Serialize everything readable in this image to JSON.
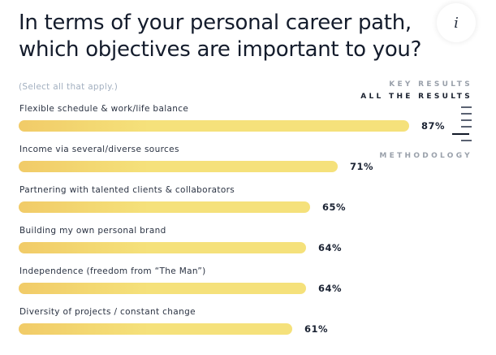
{
  "header": {
    "title": "In terms of your personal career path, which objectives are important to you?",
    "info_button_label": "i",
    "subtitle": "(Select all that apply.)"
  },
  "nav": {
    "key_results": "KEY RESULTS",
    "all_results": "ALL THE RESULTS",
    "methodology": "METHODOLOGY",
    "ticks": 6,
    "active_tick_index": 4
  },
  "colors": {
    "bar": "#f5e17b",
    "bar_start": "#f1cb68",
    "title": "#141c2c",
    "subtitle": "#a3b0c0",
    "nav_inactive": "#9aa1ab",
    "nav_active": "#1c2331"
  },
  "rows": [
    {
      "label": "Flexible schedule & work/life balance",
      "value": 87,
      "pct": "87%"
    },
    {
      "label": "Income via several/diverse sources",
      "value": 71,
      "pct": "71%"
    },
    {
      "label": "Partnering with talented clients & collaborators",
      "value": 65,
      "pct": "65%"
    },
    {
      "label": "Building my own personal brand",
      "value": 64,
      "pct": "64%"
    },
    {
      "label": "Independence (freedom from “The Man”)",
      "value": 64,
      "pct": "64%"
    },
    {
      "label": "Diversity of projects / constant change",
      "value": 61,
      "pct": "61%"
    }
  ],
  "chart_data": {
    "type": "bar",
    "orientation": "horizontal",
    "title": "In terms of your personal career path, which objectives are important to you?",
    "subtitle": "(Select all that apply.)",
    "categories": [
      "Flexible schedule & work/life balance",
      "Income via several/diverse sources",
      "Partnering with talented clients & collaborators",
      "Building my own personal brand",
      "Independence (freedom from “The Man”)",
      "Diversity of projects / constant change"
    ],
    "values": [
      87,
      71,
      65,
      64,
      64,
      61
    ],
    "unit": "%",
    "xlabel": "",
    "ylabel": "",
    "xlim": [
      0,
      100
    ],
    "grid": false,
    "legend": null,
    "data_labels": true
  }
}
